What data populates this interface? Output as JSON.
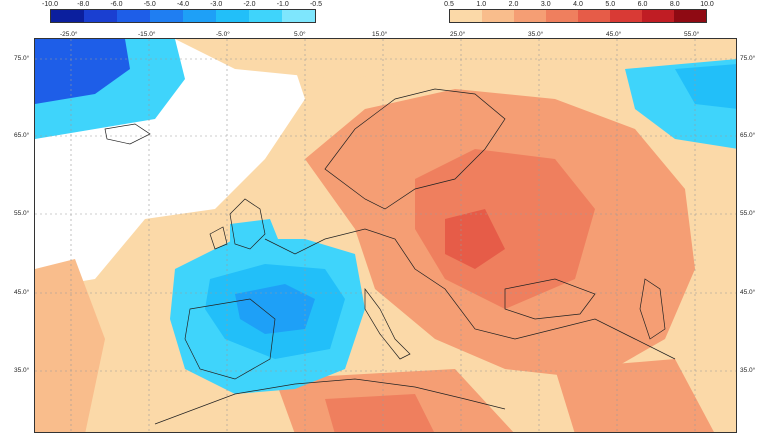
{
  "legend": {
    "negative": {
      "ticks": [
        "-10.0",
        "-8.0",
        "-6.0",
        "-5.0",
        "-4.0",
        "-3.0",
        "-2.0",
        "-1.0",
        "-0.5"
      ],
      "colors": [
        "#0b1f9e",
        "#1a3fd1",
        "#1e5ee8",
        "#1f7ef2",
        "#1ea0f7",
        "#22bff9",
        "#3fd4fb",
        "#7ee6fd"
      ]
    },
    "positive": {
      "ticks": [
        "0.5",
        "1.0",
        "2.0",
        "3.0",
        "4.0",
        "5.0",
        "6.0",
        "8.0",
        "10.0"
      ],
      "colors": [
        "#fbd9a8",
        "#f9bd8c",
        "#f59e74",
        "#ef7f5e",
        "#e65c48",
        "#d93a35",
        "#c01d24",
        "#8f0a13"
      ]
    }
  },
  "map": {
    "lon_labels": [
      "-25.0°",
      "-15.0°",
      "-5.0°",
      "5.0°",
      "15.0°",
      "25.0°",
      "35.0°",
      "45.0°",
      "55.0°"
    ],
    "lat_labels_left": [
      "75.0°",
      "65.0°",
      "55.0°",
      "45.0°",
      "35.0°"
    ],
    "lat_labels_right": [
      "75.0°",
      "65.0°",
      "55.0°",
      "45.0°",
      "35.0°"
    ]
  }
}
